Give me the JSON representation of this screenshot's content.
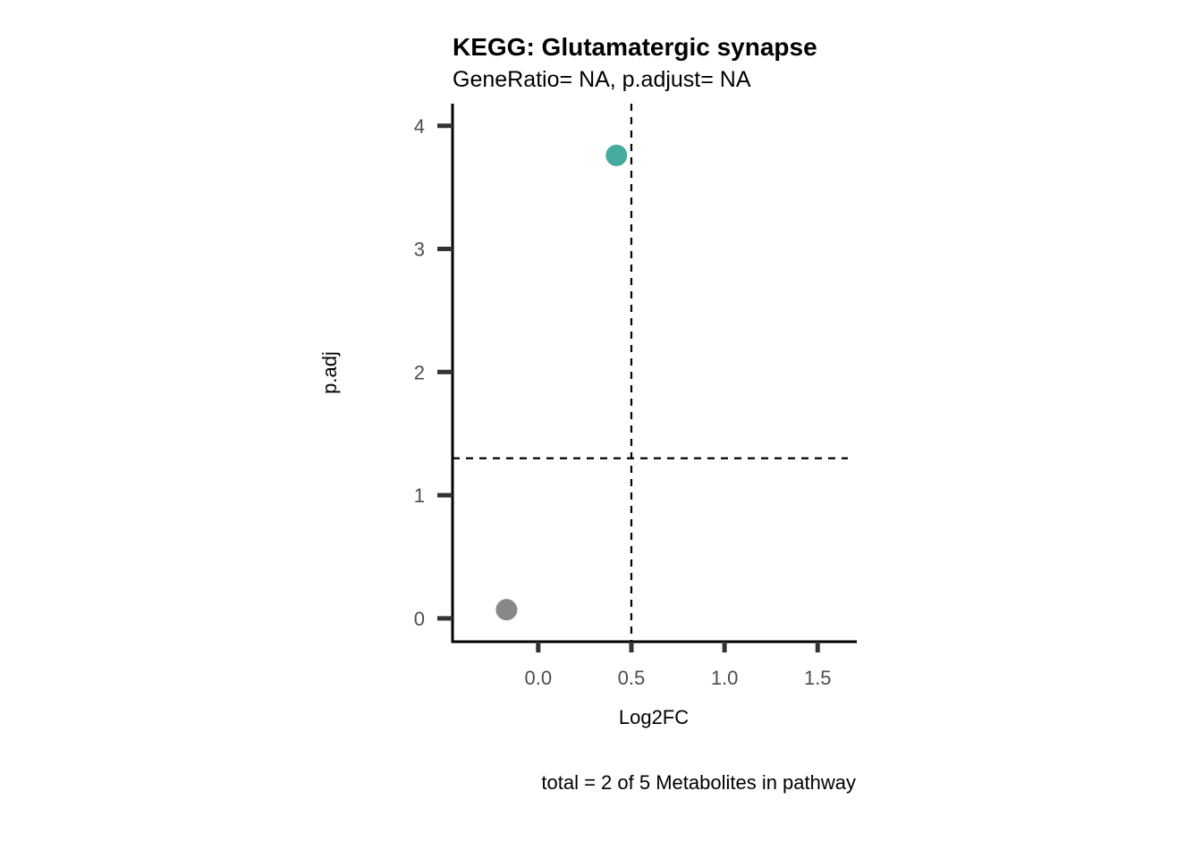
{
  "chart_data": {
    "type": "scatter",
    "title": "KEGG: Glutamatergic synapse",
    "subtitle": "GeneRatio= NA, p.adjust= NA",
    "xlabel": "Log2FC",
    "ylabel": "p.adj",
    "caption": "total = 2 of 5 Metabolites in pathway",
    "xlim": [
      -0.46,
      1.71
    ],
    "ylim": [
      -0.19,
      4.18
    ],
    "x_ticks": [
      0.0,
      0.5,
      1.0,
      1.5
    ],
    "x_tick_labels": [
      "0.0",
      "0.5",
      "1.0",
      "1.5"
    ],
    "y_ticks": [
      0,
      1,
      2,
      3,
      4
    ],
    "y_tick_labels": [
      "0",
      "1",
      "2",
      "3",
      "4"
    ],
    "points": [
      {
        "x": -0.17,
        "y": 0.07,
        "color": "#888888"
      },
      {
        "x": 0.42,
        "y": 3.76,
        "color": "#45ab9c"
      }
    ],
    "reference_lines": {
      "vertical_x": 0.5,
      "horizontal_y": 1.3,
      "style": "dashed"
    },
    "grid": false,
    "legend": "none"
  }
}
